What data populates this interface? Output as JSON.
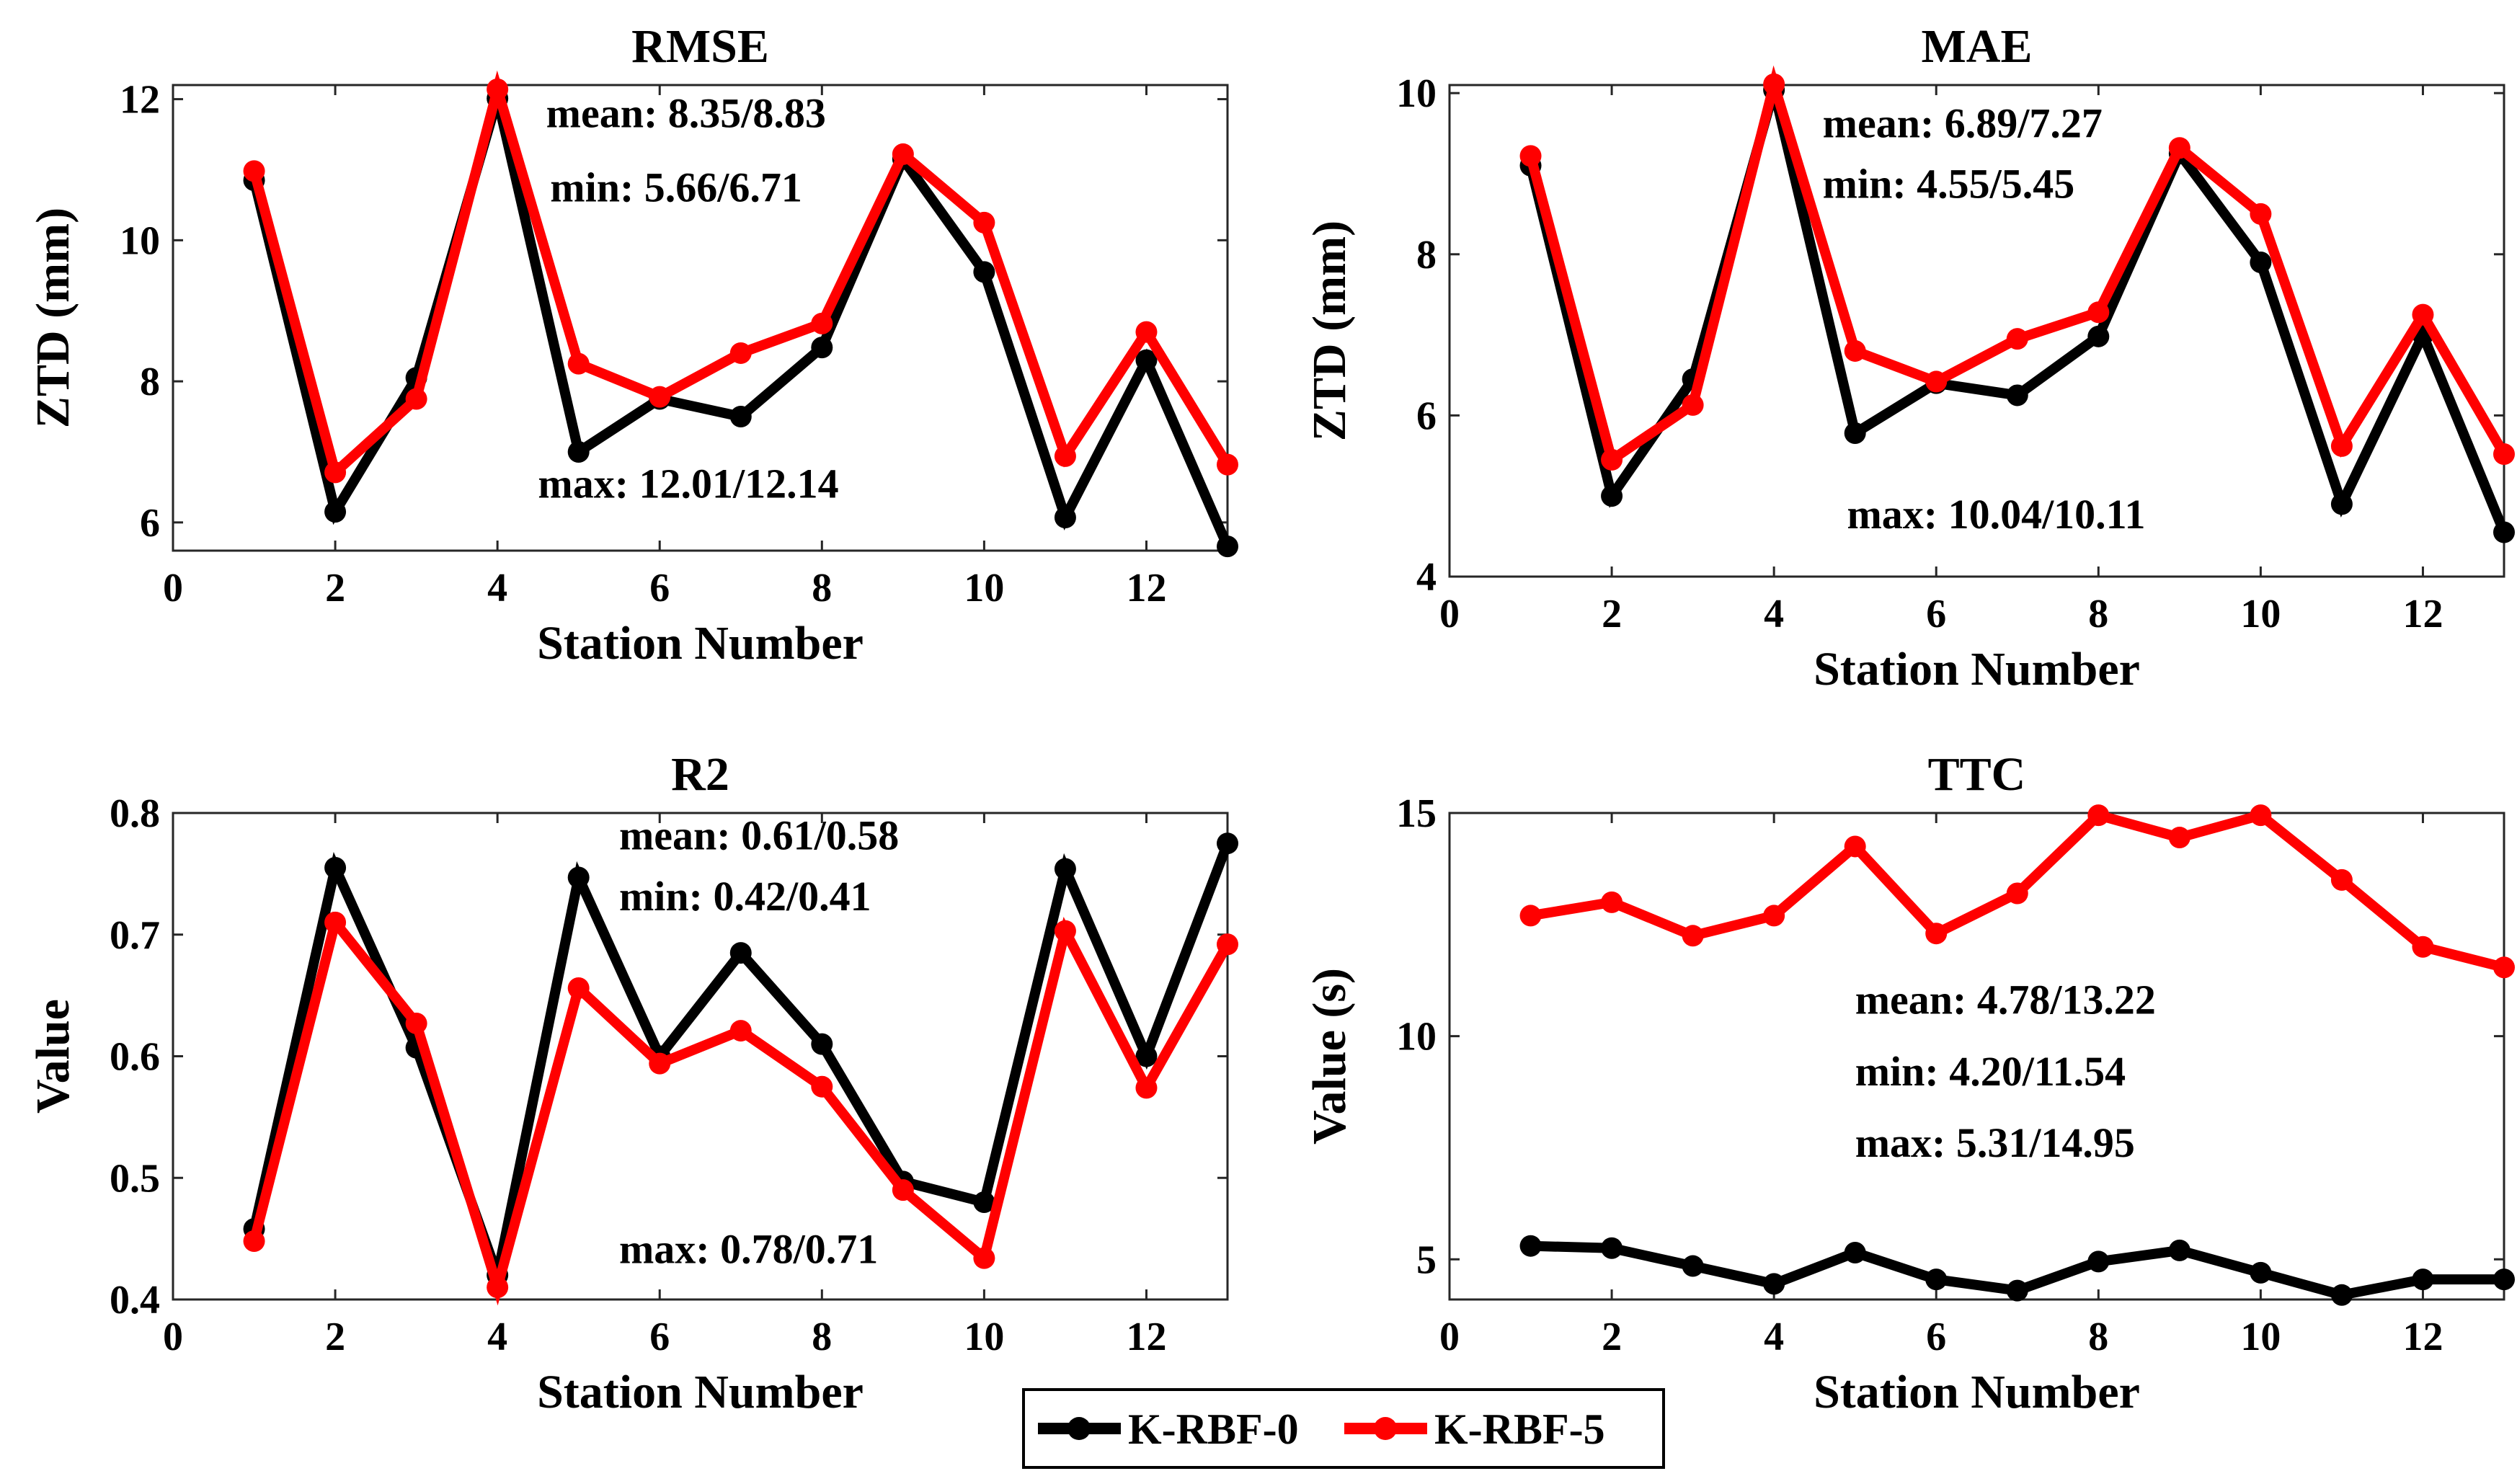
{
  "chart_data": [
    {
      "type": "line",
      "title": "RMSE",
      "xlabel": "Station Number",
      "ylabel": "ZTD (mm)",
      "xlim": [
        0,
        13
      ],
      "ylim": [
        5.6,
        12.2
      ],
      "xticks": [
        0,
        2,
        4,
        6,
        8,
        10,
        12
      ],
      "yticks": [
        6,
        8,
        10,
        12
      ],
      "x": [
        1,
        2,
        3,
        4,
        5,
        6,
        7,
        8,
        9,
        10,
        11,
        12,
        13
      ],
      "series": [
        {
          "name": "K-RBF-0",
          "color": "#000000",
          "values": [
            10.85,
            6.15,
            8.05,
            12.01,
            7.0,
            7.75,
            7.5,
            8.48,
            11.15,
            9.55,
            6.07,
            8.3,
            5.66
          ]
        },
        {
          "name": "K-RBF-5",
          "color": "#ff0000",
          "values": [
            10.98,
            6.71,
            7.75,
            12.14,
            8.25,
            7.78,
            8.4,
            8.82,
            11.22,
            10.25,
            6.94,
            8.7,
            6.82
          ]
        }
      ],
      "annotations": [
        {
          "text": "mean: 8.35/8.83",
          "at": [
            4.6,
            11.6
          ]
        },
        {
          "text": "min: 5.66/6.71",
          "at": [
            4.65,
            10.55
          ]
        },
        {
          "text": "max: 12.01/12.14",
          "at": [
            4.5,
            6.35
          ]
        }
      ]
    },
    {
      "type": "line",
      "title": "MAE",
      "xlabel": "Station Number",
      "ylabel": "ZTD (mm)",
      "xlim": [
        0,
        13
      ],
      "ylim": [
        4,
        10.1
      ],
      "xticks": [
        0,
        2,
        4,
        6,
        8,
        10,
        12
      ],
      "yticks": [
        4,
        6,
        8,
        10
      ],
      "x": [
        1,
        2,
        3,
        4,
        5,
        6,
        7,
        8,
        9,
        10,
        11,
        12,
        13
      ],
      "series": [
        {
          "name": "K-RBF-0",
          "color": "#000000",
          "values": [
            9.1,
            5.0,
            6.45,
            10.04,
            5.78,
            6.4,
            6.25,
            6.98,
            9.25,
            7.9,
            4.9,
            7.0,
            4.55
          ]
        },
        {
          "name": "K-RBF-5",
          "color": "#ff0000",
          "values": [
            9.22,
            5.45,
            6.13,
            10.11,
            6.8,
            6.42,
            6.95,
            7.28,
            9.32,
            8.5,
            5.62,
            7.25,
            5.52
          ]
        }
      ],
      "annotations": [
        {
          "text": "mean: 6.89/7.27",
          "at": [
            4.6,
            9.45
          ]
        },
        {
          "text": "min: 4.55/5.45",
          "at": [
            4.6,
            8.7
          ]
        },
        {
          "text": "max: 10.04/10.11",
          "at": [
            4.9,
            4.6
          ]
        }
      ]
    },
    {
      "type": "line",
      "title": "R2",
      "xlabel": "Station Number",
      "ylabel": "Value",
      "xlim": [
        0,
        13
      ],
      "ylim": [
        0.4,
        0.8
      ],
      "xticks": [
        0,
        2,
        4,
        6,
        8,
        10,
        12
      ],
      "yticks": [
        0.4,
        0.5,
        0.6,
        0.7,
        0.8
      ],
      "x": [
        1,
        2,
        3,
        4,
        5,
        6,
        7,
        8,
        9,
        10,
        11,
        12,
        13
      ],
      "series": [
        {
          "name": "K-RBF-0",
          "color": "#000000",
          "values": [
            0.458,
            0.755,
            0.607,
            0.42,
            0.747,
            0.6,
            0.685,
            0.61,
            0.497,
            0.48,
            0.754,
            0.6,
            0.775
          ]
        },
        {
          "name": "K-RBF-5",
          "color": "#ff0000",
          "values": [
            0.448,
            0.71,
            0.627,
            0.41,
            0.656,
            0.594,
            0.621,
            0.575,
            0.49,
            0.434,
            0.703,
            0.574,
            0.692
          ]
        }
      ],
      "annotations": [
        {
          "text": "mean: 0.61/0.58",
          "at": [
            5.5,
            0.77
          ]
        },
        {
          "text": "min: 0.42/0.41",
          "at": [
            5.5,
            0.72
          ]
        },
        {
          "text": "max: 0.78/0.71",
          "at": [
            5.5,
            0.43
          ]
        }
      ]
    },
    {
      "type": "line",
      "title": "TTC",
      "xlabel": "Station Number",
      "ylabel": "Value (s)",
      "xlim": [
        0,
        13
      ],
      "ylim": [
        4.1,
        15
      ],
      "xticks": [
        0,
        2,
        4,
        6,
        8,
        10,
        12
      ],
      "yticks": [
        5,
        10,
        15
      ],
      "x": [
        1,
        2,
        3,
        4,
        5,
        6,
        7,
        8,
        9,
        10,
        11,
        12,
        13
      ],
      "series": [
        {
          "name": "K-RBF-0",
          "color": "#000000",
          "values": [
            5.3,
            5.25,
            4.85,
            4.45,
            5.15,
            4.55,
            4.3,
            4.95,
            5.2,
            4.7,
            4.2,
            4.55,
            4.55
          ]
        },
        {
          "name": "K-RBF-5",
          "color": "#ff0000",
          "values": [
            12.7,
            13.0,
            12.25,
            12.7,
            14.25,
            12.3,
            13.2,
            14.95,
            14.45,
            14.95,
            13.5,
            12.0,
            11.54
          ]
        }
      ],
      "annotations": [
        {
          "text": "mean: 4.78/13.22",
          "at": [
            5.0,
            10.5
          ]
        },
        {
          "text": "min: 4.20/11.54",
          "at": [
            5.0,
            8.9
          ]
        },
        {
          "text": "max: 5.31/14.95",
          "at": [
            5.0,
            7.3
          ]
        }
      ]
    }
  ],
  "legend": {
    "placement": "bottom-center",
    "items": [
      {
        "label": "K-RBF-0",
        "color": "#000000"
      },
      {
        "label": "K-RBF-5",
        "color": "#ff0000"
      }
    ]
  }
}
